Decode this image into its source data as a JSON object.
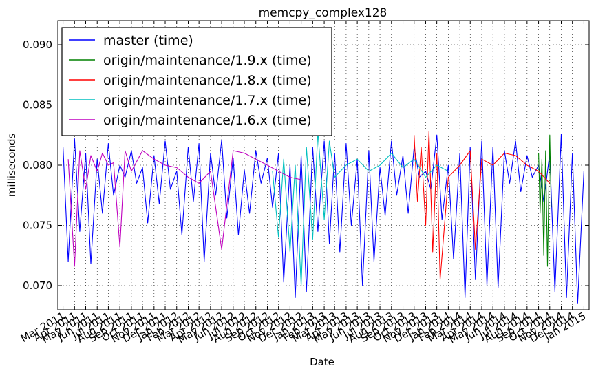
{
  "chart_data": {
    "type": "line",
    "title": "memcpy_complex128",
    "xlabel": "Date",
    "ylabel": "milliseconds",
    "xlim": [
      "2011-02-15",
      "2015-01-15"
    ],
    "ylim": [
      0.068,
      0.092
    ],
    "yticks": [
      0.07,
      0.075,
      0.08,
      0.085,
      0.09
    ],
    "ytick_labels": [
      "0.070",
      "0.075",
      "0.080",
      "0.085",
      "0.090"
    ],
    "xticks": [
      "2011-03-01",
      "2011-04-01",
      "2011-05-01",
      "2011-06-01",
      "2011-07-01",
      "2011-08-01",
      "2011-09-01",
      "2011-10-01",
      "2011-11-01",
      "2011-12-01",
      "2012-01-01",
      "2012-02-01",
      "2012-03-01",
      "2012-04-01",
      "2012-05-01",
      "2012-06-01",
      "2012-07-01",
      "2012-08-01",
      "2012-09-01",
      "2012-10-01",
      "2012-11-01",
      "2012-12-01",
      "2013-01-01",
      "2013-02-01",
      "2013-03-01",
      "2013-04-01",
      "2013-05-01",
      "2013-06-01",
      "2013-07-01",
      "2013-08-01",
      "2013-09-01",
      "2013-10-01",
      "2013-11-01",
      "2013-12-01",
      "2014-01-01",
      "2014-02-01",
      "2014-03-01",
      "2014-04-01",
      "2014-05-01",
      "2014-06-01",
      "2014-07-01",
      "2014-08-01",
      "2014-09-01",
      "2014-10-01",
      "2014-11-01",
      "2014-12-01",
      "2015-01-01"
    ],
    "xtick_labels": [
      "Mar 2011",
      "Apr 2011",
      "May 2011",
      "Jun 2011",
      "Jul 2011",
      "Aug 2011",
      "Sep 2011",
      "Oct 2011",
      "Nov 2011",
      "Dec 2011",
      "Jan 2012",
      "Feb 2012",
      "Mar 2012",
      "Apr 2012",
      "May 2012",
      "Jun 2012",
      "Jul 2012",
      "Aug 2012",
      "Sep 2012",
      "Oct 2012",
      "Nov 2012",
      "Dec 2012",
      "Jan 2013",
      "Feb 2013",
      "Mar 2013",
      "Apr 2013",
      "May 2013",
      "Jun 2013",
      "Jul 2013",
      "Aug 2013",
      "Sep 2013",
      "Oct 2013",
      "Nov 2013",
      "Dec 2013",
      "Jan 2014",
      "Feb 2014",
      "Mar 2014",
      "Apr 2014",
      "May 2014",
      "Jun 2014",
      "Jul 2014",
      "Aug 2014",
      "Sep 2014",
      "Oct 2014",
      "Nov 2014",
      "Dec 2014",
      "Jan 2015"
    ],
    "grid": true,
    "legend_position": "top-left",
    "series": [
      {
        "name": "master (time)",
        "color": "#0000ff",
        "x": [
          "2011-03-01",
          "2011-03-15",
          "2011-04-01",
          "2011-04-15",
          "2011-05-01",
          "2011-05-15",
          "2011-06-01",
          "2011-06-15",
          "2011-07-01",
          "2011-07-15",
          "2011-08-01",
          "2011-08-15",
          "2011-09-01",
          "2011-09-15",
          "2011-10-01",
          "2011-10-15",
          "2011-11-01",
          "2011-11-15",
          "2011-12-01",
          "2011-12-15",
          "2012-01-01",
          "2012-01-15",
          "2012-02-01",
          "2012-02-15",
          "2012-03-01",
          "2012-03-15",
          "2012-04-01",
          "2012-04-15",
          "2012-05-01",
          "2012-05-15",
          "2012-06-01",
          "2012-06-15",
          "2012-07-01",
          "2012-07-15",
          "2012-08-01",
          "2012-08-15",
          "2012-09-01",
          "2012-09-15",
          "2012-10-01",
          "2012-10-15",
          "2012-11-01",
          "2012-11-15",
          "2012-12-01",
          "2012-12-15",
          "2013-01-01",
          "2013-01-15",
          "2013-02-01",
          "2013-02-15",
          "2013-03-01",
          "2013-03-15",
          "2013-04-01",
          "2013-04-15",
          "2013-05-01",
          "2013-05-15",
          "2013-06-01",
          "2013-06-15",
          "2013-07-01",
          "2013-07-15",
          "2013-08-01",
          "2013-08-15",
          "2013-09-01",
          "2013-09-15",
          "2013-10-01",
          "2013-10-15",
          "2013-11-01",
          "2013-11-15",
          "2013-12-01",
          "2013-12-15",
          "2014-01-01",
          "2014-01-15",
          "2014-02-01",
          "2014-02-15",
          "2014-03-01",
          "2014-03-15",
          "2014-04-01",
          "2014-04-15",
          "2014-05-01",
          "2014-05-15",
          "2014-06-01",
          "2014-06-15",
          "2014-07-01",
          "2014-07-15",
          "2014-08-01",
          "2014-08-15",
          "2014-09-01",
          "2014-09-15",
          "2014-10-01",
          "2014-10-15",
          "2014-11-01",
          "2014-11-15",
          "2014-12-01",
          "2014-12-15",
          "2015-01-01"
        ],
        "y": [
          0.0815,
          0.072,
          0.0822,
          0.0745,
          0.081,
          0.0718,
          0.0805,
          0.076,
          0.0818,
          0.0775,
          0.08,
          0.079,
          0.0812,
          0.0785,
          0.0798,
          0.0752,
          0.0808,
          0.0768,
          0.082,
          0.078,
          0.0795,
          0.0742,
          0.0815,
          0.077,
          0.0818,
          0.072,
          0.081,
          0.0775,
          0.0821,
          0.0756,
          0.0806,
          0.0742,
          0.0796,
          0.076,
          0.0812,
          0.0785,
          0.0806,
          0.0765,
          0.081,
          0.0703,
          0.08,
          0.069,
          0.0808,
          0.0695,
          0.0815,
          0.0745,
          0.082,
          0.0735,
          0.081,
          0.0728,
          0.0818,
          0.075,
          0.0805,
          0.07,
          0.0812,
          0.072,
          0.0798,
          0.0758,
          0.082,
          0.0775,
          0.0808,
          0.076,
          0.0815,
          0.079,
          0.0795,
          0.078,
          0.0825,
          0.0755,
          0.08,
          0.0722,
          0.081,
          0.069,
          0.0815,
          0.0705,
          0.082,
          0.07,
          0.0815,
          0.0698,
          0.0812,
          0.0785,
          0.082,
          0.0778,
          0.0808,
          0.079,
          0.08,
          0.077,
          0.081,
          0.0695,
          0.0826,
          0.069,
          0.081,
          0.0685,
          0.0795
        ]
      },
      {
        "name": "origin/maintenance/1.9.x (time)",
        "color": "#008000",
        "x": [
          "2014-09-01",
          "2014-09-05",
          "2014-09-10",
          "2014-09-15",
          "2014-09-20",
          "2014-09-25",
          "2014-10-01",
          "2014-10-05"
        ],
        "y": [
          0.081,
          0.076,
          0.0805,
          0.0725,
          0.0812,
          0.0716,
          0.0825,
          0.0765
        ]
      },
      {
        "name": "origin/maintenance/1.8.x (time)",
        "color": "#ff0000",
        "x": [
          "2013-10-01",
          "2013-10-10",
          "2013-10-20",
          "2013-11-01",
          "2013-11-10",
          "2013-11-20",
          "2013-12-01",
          "2013-12-10",
          "2014-01-01",
          "2014-02-01",
          "2014-03-01",
          "2014-03-15",
          "2014-04-01",
          "2014-05-01",
          "2014-06-01",
          "2014-07-01",
          "2014-08-01",
          "2014-09-01",
          "2014-10-01"
        ],
        "y": [
          0.0825,
          0.077,
          0.0815,
          0.075,
          0.0828,
          0.0728,
          0.081,
          0.0705,
          0.079,
          0.08,
          0.0812,
          0.073,
          0.0805,
          0.08,
          0.081,
          0.0808,
          0.08,
          0.0795,
          0.0785
        ]
      },
      {
        "name": "origin/maintenance/1.7.x (time)",
        "color": "#00bfbf",
        "x": [
          "2012-09-15",
          "2012-10-01",
          "2012-10-15",
          "2012-11-01",
          "2012-11-15",
          "2012-12-01",
          "2012-12-15",
          "2013-01-01",
          "2013-01-15",
          "2013-02-01",
          "2013-02-15",
          "2013-03-01",
          "2013-04-01",
          "2013-05-01",
          "2013-06-01",
          "2013-07-01",
          "2013-08-01",
          "2013-09-01",
          "2013-10-01",
          "2013-11-01",
          "2013-12-01",
          "2014-01-01"
        ],
        "y": [
          0.0795,
          0.074,
          0.0805,
          0.0728,
          0.08,
          0.07,
          0.0815,
          0.0738,
          0.0828,
          0.0755,
          0.082,
          0.079,
          0.08,
          0.0805,
          0.0795,
          0.08,
          0.081,
          0.0798,
          0.0805,
          0.079,
          0.08,
          0.0795
        ]
      },
      {
        "name": "origin/maintenance/1.6.x (time)",
        "color": "#bf00bf",
        "x": [
          "2011-03-15",
          "2011-04-01",
          "2011-04-15",
          "2011-05-01",
          "2011-05-15",
          "2011-06-01",
          "2011-06-15",
          "2011-07-01",
          "2011-07-15",
          "2011-08-01",
          "2011-08-15",
          "2011-09-01",
          "2011-10-01",
          "2011-11-01",
          "2011-12-01",
          "2012-01-01",
          "2012-02-01",
          "2012-03-01",
          "2012-04-01",
          "2012-05-01",
          "2012-06-01",
          "2012-07-01",
          "2012-08-01",
          "2012-09-01",
          "2012-10-01",
          "2012-11-01",
          "2012-12-01"
        ],
        "y": [
          0.0805,
          0.0716,
          0.0812,
          0.078,
          0.0808,
          0.0795,
          0.081,
          0.08,
          0.0802,
          0.0732,
          0.0812,
          0.0795,
          0.0812,
          0.0805,
          0.08,
          0.0798,
          0.079,
          0.0785,
          0.0795,
          0.073,
          0.0812,
          0.081,
          0.0805,
          0.08,
          0.0795,
          0.079,
          0.0788
        ]
      }
    ]
  }
}
